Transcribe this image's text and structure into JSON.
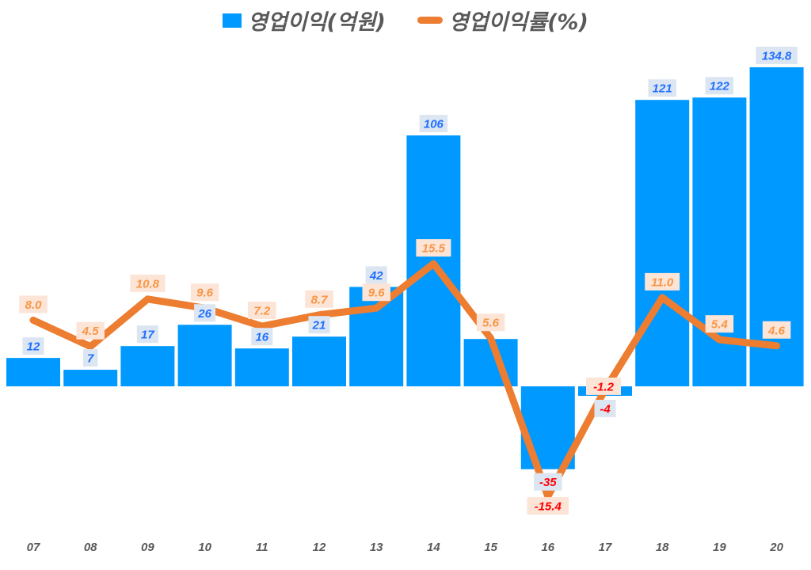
{
  "chart_data": {
    "type": "bar+line",
    "title": "",
    "categories": [
      "07",
      "08",
      "09",
      "10",
      "11",
      "12",
      "13",
      "14",
      "15",
      "16",
      "17",
      "18",
      "19",
      "20"
    ],
    "series": [
      {
        "name": "영업이익(억원)",
        "type": "bar",
        "color": "#0099FF",
        "values": [
          12,
          7,
          17,
          26,
          16,
          21,
          42,
          106,
          20,
          -35,
          -4,
          121,
          122,
          134.8
        ],
        "labels": [
          "12",
          "7",
          "17",
          "26",
          "16",
          "21",
          "42",
          "106",
          "",
          "-35",
          "-4",
          "121",
          "122",
          "134.8"
        ]
      },
      {
        "name": "영업이익률(%)",
        "type": "line",
        "color": "#ED7D31",
        "values": [
          8.0,
          4.5,
          10.8,
          9.6,
          7.2,
          8.7,
          9.6,
          15.5,
          5.6,
          -15.4,
          -1.2,
          11.0,
          5.4,
          4.6
        ],
        "labels": [
          "8.0",
          "4.5",
          "10.8",
          "9.6",
          "7.2",
          "8.7",
          "9.6",
          "15.5",
          "5.6",
          "-15.4",
          "-1.2",
          "11.0",
          "5.4",
          "4.6"
        ]
      }
    ],
    "legend": "top",
    "grid": false,
    "negative_label_color": "#FF0000"
  }
}
